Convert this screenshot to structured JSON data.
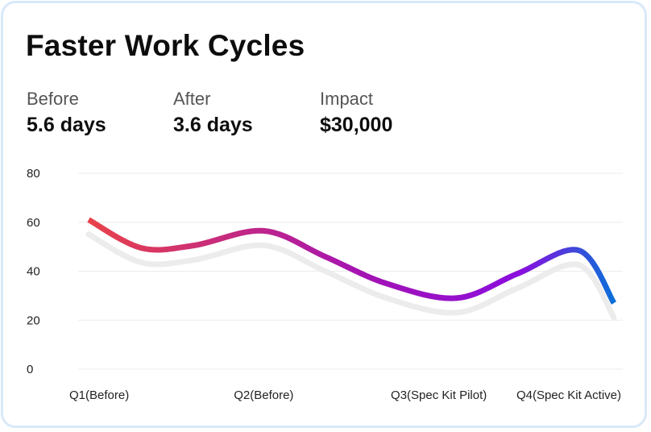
{
  "title": "Faster Work Cycles",
  "stats": [
    {
      "label": "Before",
      "value": "5.6 days"
    },
    {
      "label": "After",
      "value": "3.6 days"
    },
    {
      "label": "Impact",
      "value": "$30,000"
    }
  ],
  "colors": {
    "gradient_start": "#e8424a",
    "gradient_mid": "#a413b3",
    "gradient_late": "#8b0ede",
    "gradient_end": "#0a6fd9",
    "shadow": "#ececec",
    "grid": "#ececec",
    "border": "#d8e9f9"
  },
  "chart_data": {
    "type": "line",
    "categories": [
      "Q1(Before)",
      "Q2(Before)",
      "Q3(Spec Kit Pilot)",
      "Q4(Spec Kit Active)"
    ],
    "ylim": [
      0,
      80
    ],
    "yticks": [
      "0",
      "20",
      "40",
      "60",
      "80"
    ],
    "grid": true,
    "series": [
      {
        "x": [
          0.0,
          0.3,
          0.6,
          1.0,
          1.35,
          1.7,
          2.1,
          2.45,
          2.8,
          3.0
        ],
        "y": [
          61,
          49.5,
          50.5,
          56.5,
          46,
          35,
          29,
          39,
          48.5,
          27
        ]
      }
    ]
  }
}
